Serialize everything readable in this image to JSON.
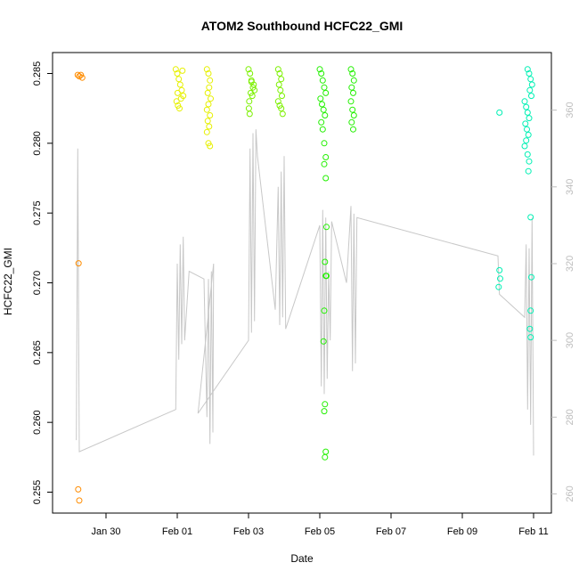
{
  "chart_data": {
    "type": "scatter",
    "title": "ATOM2 Southbound HCFC22_GMI",
    "xlabel": "Date",
    "ylabel": "HCFC22_GMI",
    "x_ticks": [
      "Jan 30",
      "Feb 01",
      "Feb 03",
      "Feb 05",
      "Feb 07",
      "Feb 09",
      "Feb 11"
    ],
    "xlim": [
      "2017-01-28T12:00",
      "2017-02-11T12:00"
    ],
    "ylim": [
      0.2535,
      0.2865
    ],
    "y_ticks": [
      0.255,
      0.26,
      0.265,
      0.27,
      0.275,
      0.28,
      0.285
    ],
    "y_tick_labels": [
      "0.255",
      "0.260",
      "0.265",
      "0.270",
      "0.275",
      "0.280",
      "0.285"
    ],
    "y2lim": [
      255,
      375
    ],
    "y2_ticks": [
      260,
      280,
      300,
      320,
      340,
      360
    ],
    "y2_tick_labels": [
      "260",
      "280",
      "300",
      "320",
      "340",
      "360"
    ],
    "grid": false,
    "series": [
      {
        "color": "#ff8c00",
        "points": [
          {
            "x": "2017-01-29T05:00",
            "y": 0.2849
          },
          {
            "x": "2017-01-29T06:00",
            "y": 0.2848
          },
          {
            "x": "2017-01-29T07:00",
            "y": 0.2849
          },
          {
            "x": "2017-01-29T08:00",
            "y": 0.2847
          },
          {
            "x": "2017-01-29T05:30",
            "y": 0.2714
          },
          {
            "x": "2017-01-29T05:15",
            "y": 0.2552
          },
          {
            "x": "2017-01-29T06:00",
            "y": 0.2544
          }
        ]
      },
      {
        "color": "#e6f000",
        "points": [
          {
            "x": "2017-01-31T23:00",
            "y": 0.2853
          },
          {
            "x": "2017-02-01T00:00",
            "y": 0.285
          },
          {
            "x": "2017-02-01T01:00",
            "y": 0.2846
          },
          {
            "x": "2017-02-01T02:00",
            "y": 0.2842
          },
          {
            "x": "2017-02-01T03:00",
            "y": 0.2838
          },
          {
            "x": "2017-02-01T04:00",
            "y": 0.2834
          },
          {
            "x": "2017-01-31T23:30",
            "y": 0.283
          },
          {
            "x": "2017-02-01T00:30",
            "y": 0.2827
          },
          {
            "x": "2017-02-01T01:30",
            "y": 0.2825
          },
          {
            "x": "2017-02-01T02:30",
            "y": 0.2832
          },
          {
            "x": "2017-02-01T03:30",
            "y": 0.2852
          },
          {
            "x": "2017-02-01T00:15",
            "y": 0.2836
          },
          {
            "x": "2017-02-01T20:00",
            "y": 0.2853
          },
          {
            "x": "2017-02-01T21:00",
            "y": 0.285
          },
          {
            "x": "2017-02-01T22:00",
            "y": 0.2845
          },
          {
            "x": "2017-02-01T21:30",
            "y": 0.284
          },
          {
            "x": "2017-02-01T20:30",
            "y": 0.2836
          },
          {
            "x": "2017-02-01T22:30",
            "y": 0.2832
          },
          {
            "x": "2017-02-01T21:00",
            "y": 0.2828
          },
          {
            "x": "2017-02-01T20:00",
            "y": 0.2824
          },
          {
            "x": "2017-02-01T22:00",
            "y": 0.282
          },
          {
            "x": "2017-02-01T20:30",
            "y": 0.2816
          },
          {
            "x": "2017-02-01T21:30",
            "y": 0.2812
          },
          {
            "x": "2017-02-01T20:00",
            "y": 0.2808
          },
          {
            "x": "2017-02-01T22:00",
            "y": 0.2798
          },
          {
            "x": "2017-02-01T21:00",
            "y": 0.28
          }
        ]
      },
      {
        "color": "#7cf000",
        "points": [
          {
            "x": "2017-02-03T00:00",
            "y": 0.2853
          },
          {
            "x": "2017-02-03T01:00",
            "y": 0.285
          },
          {
            "x": "2017-02-03T02:00",
            "y": 0.2844
          },
          {
            "x": "2017-02-03T03:00",
            "y": 0.284
          },
          {
            "x": "2017-02-03T04:00",
            "y": 0.2838
          },
          {
            "x": "2017-02-03T01:30",
            "y": 0.2836
          },
          {
            "x": "2017-02-03T02:30",
            "y": 0.2834
          },
          {
            "x": "2017-02-03T00:30",
            "y": 0.283
          },
          {
            "x": "2017-02-03T03:30",
            "y": 0.2842
          },
          {
            "x": "2017-02-03T00:15",
            "y": 0.2825
          },
          {
            "x": "2017-02-03T00:45",
            "y": 0.2821
          },
          {
            "x": "2017-02-03T02:00",
            "y": 0.2845
          },
          {
            "x": "2017-02-03T20:00",
            "y": 0.2853
          },
          {
            "x": "2017-02-03T21:00",
            "y": 0.285
          },
          {
            "x": "2017-02-03T22:00",
            "y": 0.2846
          },
          {
            "x": "2017-02-03T20:30",
            "y": 0.2842
          },
          {
            "x": "2017-02-03T21:30",
            "y": 0.2838
          },
          {
            "x": "2017-02-03T22:30",
            "y": 0.2834
          },
          {
            "x": "2017-02-03T20:00",
            "y": 0.283
          },
          {
            "x": "2017-02-03T21:00",
            "y": 0.2827
          },
          {
            "x": "2017-02-03T22:00",
            "y": 0.2825
          },
          {
            "x": "2017-02-03T23:00",
            "y": 0.2821
          }
        ]
      },
      {
        "color": "#22f000",
        "points": [
          {
            "x": "2017-02-05T00:00",
            "y": 0.2853
          },
          {
            "x": "2017-02-05T01:00",
            "y": 0.285
          },
          {
            "x": "2017-02-05T02:00",
            "y": 0.2845
          },
          {
            "x": "2017-02-05T03:00",
            "y": 0.284
          },
          {
            "x": "2017-02-05T04:00",
            "y": 0.2836
          },
          {
            "x": "2017-02-05T00:30",
            "y": 0.2832
          },
          {
            "x": "2017-02-05T01:30",
            "y": 0.2828
          },
          {
            "x": "2017-02-05T02:30",
            "y": 0.2824
          },
          {
            "x": "2017-02-05T03:30",
            "y": 0.282
          },
          {
            "x": "2017-02-05T01:00",
            "y": 0.2815
          },
          {
            "x": "2017-02-05T02:00",
            "y": 0.281
          },
          {
            "x": "2017-02-05T03:00",
            "y": 0.28
          },
          {
            "x": "2017-02-05T04:00",
            "y": 0.279
          },
          {
            "x": "2017-02-05T03:00",
            "y": 0.2785
          },
          {
            "x": "2017-02-05T04:00",
            "y": 0.2775
          },
          {
            "x": "2017-02-05T04:30",
            "y": 0.274
          },
          {
            "x": "2017-02-05T03:30",
            "y": 0.2715
          },
          {
            "x": "2017-02-05T04:00",
            "y": 0.2705
          },
          {
            "x": "2017-02-05T03:00",
            "y": 0.268
          },
          {
            "x": "2017-02-05T02:30",
            "y": 0.2658
          },
          {
            "x": "2017-02-05T03:30",
            "y": 0.2613
          },
          {
            "x": "2017-02-05T03:00",
            "y": 0.2608
          },
          {
            "x": "2017-02-05T04:00",
            "y": 0.2579
          },
          {
            "x": "2017-02-05T03:30",
            "y": 0.2575
          },
          {
            "x": "2017-02-05T04:30",
            "y": 0.2705
          },
          {
            "x": "2017-02-05T21:00",
            "y": 0.2853
          },
          {
            "x": "2017-02-05T22:00",
            "y": 0.285
          },
          {
            "x": "2017-02-05T23:00",
            "y": 0.2845
          },
          {
            "x": "2017-02-05T21:30",
            "y": 0.284
          },
          {
            "x": "2017-02-05T22:30",
            "y": 0.2836
          },
          {
            "x": "2017-02-05T21:00",
            "y": 0.283
          },
          {
            "x": "2017-02-05T22:00",
            "y": 0.2824
          },
          {
            "x": "2017-02-05T23:00",
            "y": 0.282
          },
          {
            "x": "2017-02-05T21:30",
            "y": 0.2815
          },
          {
            "x": "2017-02-05T22:30",
            "y": 0.281
          }
        ]
      },
      {
        "color": "#00f0b4",
        "points": [
          {
            "x": "2017-02-10T01:00",
            "y": 0.2822
          },
          {
            "x": "2017-02-10T01:00",
            "y": 0.2709
          },
          {
            "x": "2017-02-10T01:30",
            "y": 0.2703
          },
          {
            "x": "2017-02-10T00:30",
            "y": 0.2697
          },
          {
            "x": "2017-02-10T20:00",
            "y": 0.2853
          },
          {
            "x": "2017-02-10T21:00",
            "y": 0.285
          },
          {
            "x": "2017-02-10T22:00",
            "y": 0.2846
          },
          {
            "x": "2017-02-10T23:00",
            "y": 0.2842
          },
          {
            "x": "2017-02-10T21:30",
            "y": 0.2838
          },
          {
            "x": "2017-02-10T22:30",
            "y": 0.2834
          },
          {
            "x": "2017-02-10T18:00",
            "y": 0.283
          },
          {
            "x": "2017-02-10T19:00",
            "y": 0.2826
          },
          {
            "x": "2017-02-10T20:00",
            "y": 0.2822
          },
          {
            "x": "2017-02-10T21:00",
            "y": 0.2818
          },
          {
            "x": "2017-02-10T18:30",
            "y": 0.2814
          },
          {
            "x": "2017-02-10T19:30",
            "y": 0.281
          },
          {
            "x": "2017-02-10T20:30",
            "y": 0.2806
          },
          {
            "x": "2017-02-10T19:00",
            "y": 0.2802
          },
          {
            "x": "2017-02-10T18:00",
            "y": 0.2798
          },
          {
            "x": "2017-02-10T20:00",
            "y": 0.2792
          },
          {
            "x": "2017-02-10T21:00",
            "y": 0.2787
          },
          {
            "x": "2017-02-10T20:30",
            "y": 0.278
          },
          {
            "x": "2017-02-10T22:00",
            "y": 0.2747
          },
          {
            "x": "2017-02-10T22:30",
            "y": 0.2704
          },
          {
            "x": "2017-02-10T22:00",
            "y": 0.268
          },
          {
            "x": "2017-02-10T21:30",
            "y": 0.2667
          },
          {
            "x": "2017-02-10T22:00",
            "y": 0.2661
          }
        ]
      }
    ],
    "secondary_series": {
      "color": "#c8c8c8",
      "axis": "right",
      "points": [
        {
          "x": "2017-01-29T04:00",
          "y": 274
        },
        {
          "x": "2017-01-29T05:00",
          "y": 350
        },
        {
          "x": "2017-01-29T06:00",
          "y": 271
        },
        {
          "x": "2017-01-31T23:00",
          "y": 282
        },
        {
          "x": "2017-02-01T00:00",
          "y": 320
        },
        {
          "x": "2017-02-01T01:00",
          "y": 295
        },
        {
          "x": "2017-02-01T02:00",
          "y": 325
        },
        {
          "x": "2017-02-01T03:00",
          "y": 299
        },
        {
          "x": "2017-02-01T04:00",
          "y": 327
        },
        {
          "x": "2017-02-01T05:00",
          "y": 300
        },
        {
          "x": "2017-02-01T08:00",
          "y": 318
        },
        {
          "x": "2017-02-01T18:00",
          "y": 316
        },
        {
          "x": "2017-02-01T20:00",
          "y": 280
        },
        {
          "x": "2017-02-01T21:00",
          "y": 316
        },
        {
          "x": "2017-02-01T22:00",
          "y": 273
        },
        {
          "x": "2017-02-01T23:00",
          "y": 318
        },
        {
          "x": "2017-02-02T00:00",
          "y": 276
        },
        {
          "x": "2017-02-02T00:30",
          "y": 320
        },
        {
          "x": "2017-02-01T14:00",
          "y": 281
        },
        {
          "x": "2017-02-03T00:00",
          "y": 300
        },
        {
          "x": "2017-02-03T01:00",
          "y": 350
        },
        {
          "x": "2017-02-03T02:00",
          "y": 302
        },
        {
          "x": "2017-02-03T03:00",
          "y": 354
        },
        {
          "x": "2017-02-03T04:00",
          "y": 305
        },
        {
          "x": "2017-02-03T05:00",
          "y": 355
        },
        {
          "x": "2017-02-03T06:00",
          "y": 348
        },
        {
          "x": "2017-02-03T18:00",
          "y": 308
        },
        {
          "x": "2017-02-03T20:00",
          "y": 340
        },
        {
          "x": "2017-02-03T21:00",
          "y": 304
        },
        {
          "x": "2017-02-03T22:00",
          "y": 344
        },
        {
          "x": "2017-02-03T23:00",
          "y": 306
        },
        {
          "x": "2017-02-04T00:00",
          "y": 348
        },
        {
          "x": "2017-02-04T01:00",
          "y": 303
        },
        {
          "x": "2017-02-05T00:00",
          "y": 330
        },
        {
          "x": "2017-02-05T01:00",
          "y": 288
        },
        {
          "x": "2017-02-05T02:00",
          "y": 334
        },
        {
          "x": "2017-02-05T03:00",
          "y": 286
        },
        {
          "x": "2017-02-05T04:00",
          "y": 332
        },
        {
          "x": "2017-02-05T05:00",
          "y": 290
        },
        {
          "x": "2017-02-05T06:00",
          "y": 318
        },
        {
          "x": "2017-02-05T07:00",
          "y": 300
        },
        {
          "x": "2017-02-05T08:00",
          "y": 331
        },
        {
          "x": "2017-02-05T18:00",
          "y": 315
        },
        {
          "x": "2017-02-05T21:00",
          "y": 335
        },
        {
          "x": "2017-02-05T22:00",
          "y": 292
        },
        {
          "x": "2017-02-05T23:00",
          "y": 333
        },
        {
          "x": "2017-02-06T00:00",
          "y": 294
        },
        {
          "x": "2017-02-06T01:00",
          "y": 332
        },
        {
          "x": "2017-02-10T00:00",
          "y": 322
        },
        {
          "x": "2017-02-10T01:00",
          "y": 312
        },
        {
          "x": "2017-02-10T18:00",
          "y": 306
        },
        {
          "x": "2017-02-10T19:00",
          "y": 325
        },
        {
          "x": "2017-02-10T20:00",
          "y": 282
        },
        {
          "x": "2017-02-10T21:00",
          "y": 324
        },
        {
          "x": "2017-02-10T22:00",
          "y": 278
        },
        {
          "x": "2017-02-10T23:00",
          "y": 332
        },
        {
          "x": "2017-02-11T00:00",
          "y": 270
        }
      ]
    }
  }
}
